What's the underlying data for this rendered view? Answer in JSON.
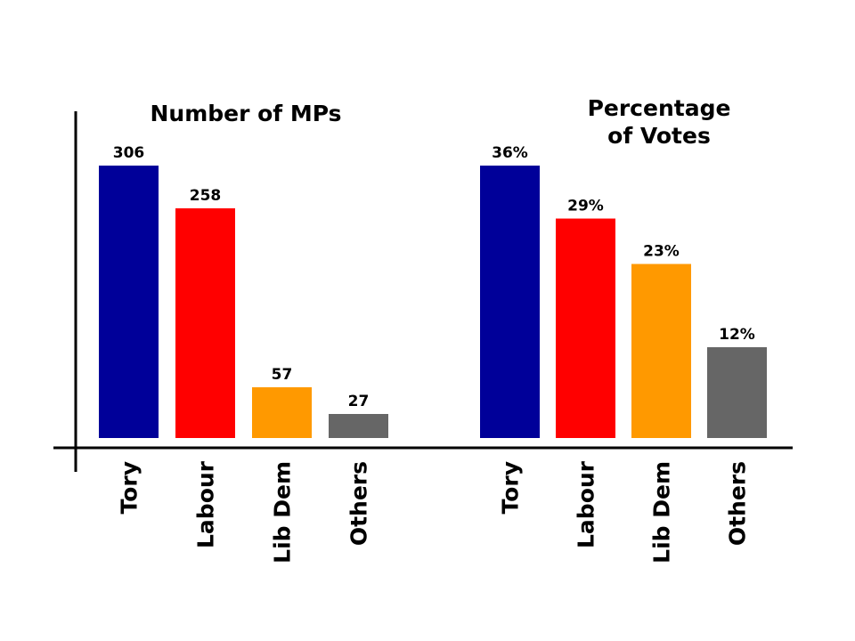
{
  "chart_data": [
    {
      "type": "bar",
      "title": "Number of MPs",
      "categories": [
        "Tory",
        "Labour",
        "Lib Dem",
        "Others"
      ],
      "values": [
        306,
        258,
        57,
        27
      ],
      "value_labels": [
        "306",
        "258",
        "57",
        "27"
      ],
      "colors": [
        "#000099",
        "#ff0000",
        "#ff9900",
        "#666666"
      ],
      "ylim": [
        0,
        306
      ],
      "grid": false
    },
    {
      "type": "bar",
      "title": [
        "Percentage",
        "of Votes"
      ],
      "categories": [
        "Tory",
        "Labour",
        "Lib Dem",
        "Others"
      ],
      "values": [
        36,
        29,
        23,
        12
      ],
      "value_labels": [
        "36%",
        "29%",
        "23%",
        "12%"
      ],
      "colors": [
        "#000099",
        "#ff0000",
        "#ff9900",
        "#666666"
      ],
      "ylim": [
        0,
        36
      ],
      "grid": false
    }
  ]
}
